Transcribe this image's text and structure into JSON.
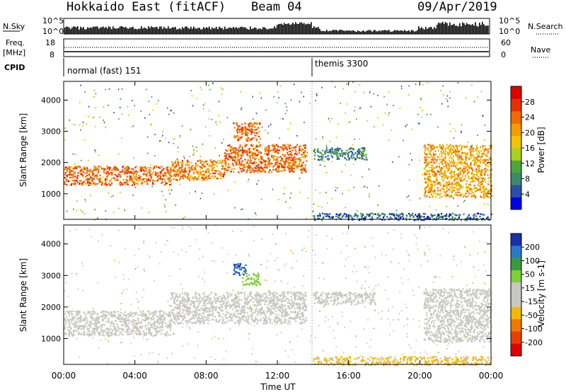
{
  "header": {
    "station": "Hokkaido East (fitACF)",
    "beam": "Beam 04",
    "date": "09/Apr/2019"
  },
  "side_labels": {
    "nsky": "N.Sky",
    "nsearch": "N.Search",
    "freq": "Freq.",
    "freq_unit": "[MHz]",
    "nave": "Nave",
    "cpid": "CPID"
  },
  "summary_panels": {
    "noise_left_ticks": [
      "10^5",
      "10^0"
    ],
    "noise_right_ticks": [
      "10^5",
      "10^0"
    ],
    "freq_ticks": [
      "18",
      "8"
    ],
    "nave_ticks": [
      "60",
      "0"
    ]
  },
  "cpid": {
    "modes": [
      {
        "label": "normal (fast) 151",
        "start_hour": 0
      },
      {
        "label": "themis 3300",
        "start_hour": 14
      }
    ]
  },
  "colors": {
    "power_scale": [
      "#0000e6",
      "#2a4ea8",
      "#3d8a6a",
      "#4aa63c",
      "#a8d21e",
      "#f2c300",
      "#f59a00",
      "#f06a00",
      "#e63000",
      "#e00000"
    ],
    "velocity_scale": [
      "#1a2fa8",
      "#2a78c8",
      "#3a9a3a",
      "#7ed03a",
      "#c8c8c0",
      "#c8c8c0",
      "#f5b800",
      "#f07a00",
      "#e84000",
      "#e00000"
    ]
  },
  "chart_data": [
    {
      "type": "heatmap",
      "name": "power",
      "x": {
        "label": "Time UT",
        "range_hours": [
          0,
          24
        ],
        "tick_labels": [
          "00:00",
          "04:00",
          "08:00",
          "12:00",
          "16:00",
          "20:00",
          "00:00"
        ]
      },
      "y": {
        "label": "Slant Range [km]",
        "range": [
          180,
          4600
        ],
        "tick_labels": [
          "1000",
          "2000",
          "3000",
          "4000"
        ]
      },
      "colorbar": {
        "label": "Power [dB]",
        "range": [
          0,
          32
        ],
        "tick_labels": [
          "4",
          "8",
          "12",
          "16",
          "20",
          "24",
          "28"
        ]
      },
      "features": [
        {
          "t": [
            0,
            6.0
          ],
          "r": [
            1300,
            1900
          ],
          "value": 24
        },
        {
          "t": [
            6.0,
            9.0
          ],
          "r": [
            1450,
            2100
          ],
          "value": 22
        },
        {
          "t": [
            9.0,
            13.6
          ],
          "r": [
            1700,
            2600
          ],
          "value": 24
        },
        {
          "t": [
            9.5,
            11.0
          ],
          "r": [
            2700,
            3300
          ],
          "value": 24
        },
        {
          "t": [
            14.0,
            17.0
          ],
          "r": [
            2100,
            2500
          ],
          "value": 8
        },
        {
          "t": [
            20.2,
            24.0
          ],
          "r": [
            900,
            2600
          ],
          "value": 20
        },
        {
          "t": [
            14.0,
            24.0
          ],
          "r": [
            180,
            400
          ],
          "value": 6
        }
      ]
    },
    {
      "type": "heatmap",
      "name": "velocity",
      "x": {
        "label": "Time UT",
        "range_hours": [
          0,
          24
        ],
        "tick_labels": [
          "00:00",
          "04:00",
          "08:00",
          "12:00",
          "16:00",
          "20:00",
          "00:00"
        ]
      },
      "y": {
        "label": "Slant Range [km]",
        "range": [
          180,
          4600
        ],
        "tick_labels": [
          "1000",
          "2000",
          "3000",
          "4000"
        ]
      },
      "colorbar": {
        "label": "Velocity [m s-1]",
        "range": [
          -250,
          250
        ],
        "tick_labels": [
          "200",
          "100",
          "50",
          "15",
          "-15",
          "-50",
          "-100",
          "-200"
        ]
      },
      "features": [
        {
          "t": [
            0,
            6.0
          ],
          "r": [
            1100,
            1900
          ],
          "value": 0
        },
        {
          "t": [
            6.0,
            13.6
          ],
          "r": [
            1500,
            2500
          ],
          "value": 0
        },
        {
          "t": [
            9.5,
            10.2
          ],
          "r": [
            3000,
            3400
          ],
          "value": 200
        },
        {
          "t": [
            10.0,
            11.0
          ],
          "r": [
            2700,
            3100
          ],
          "value": 70
        },
        {
          "t": [
            14.0,
            17.5
          ],
          "r": [
            2100,
            2500
          ],
          "value": 0
        },
        {
          "t": [
            20.2,
            24.0
          ],
          "r": [
            900,
            2600
          ],
          "value": 0
        },
        {
          "t": [
            14.0,
            24.0
          ],
          "r": [
            180,
            450
          ],
          "value": -60
        }
      ]
    }
  ]
}
